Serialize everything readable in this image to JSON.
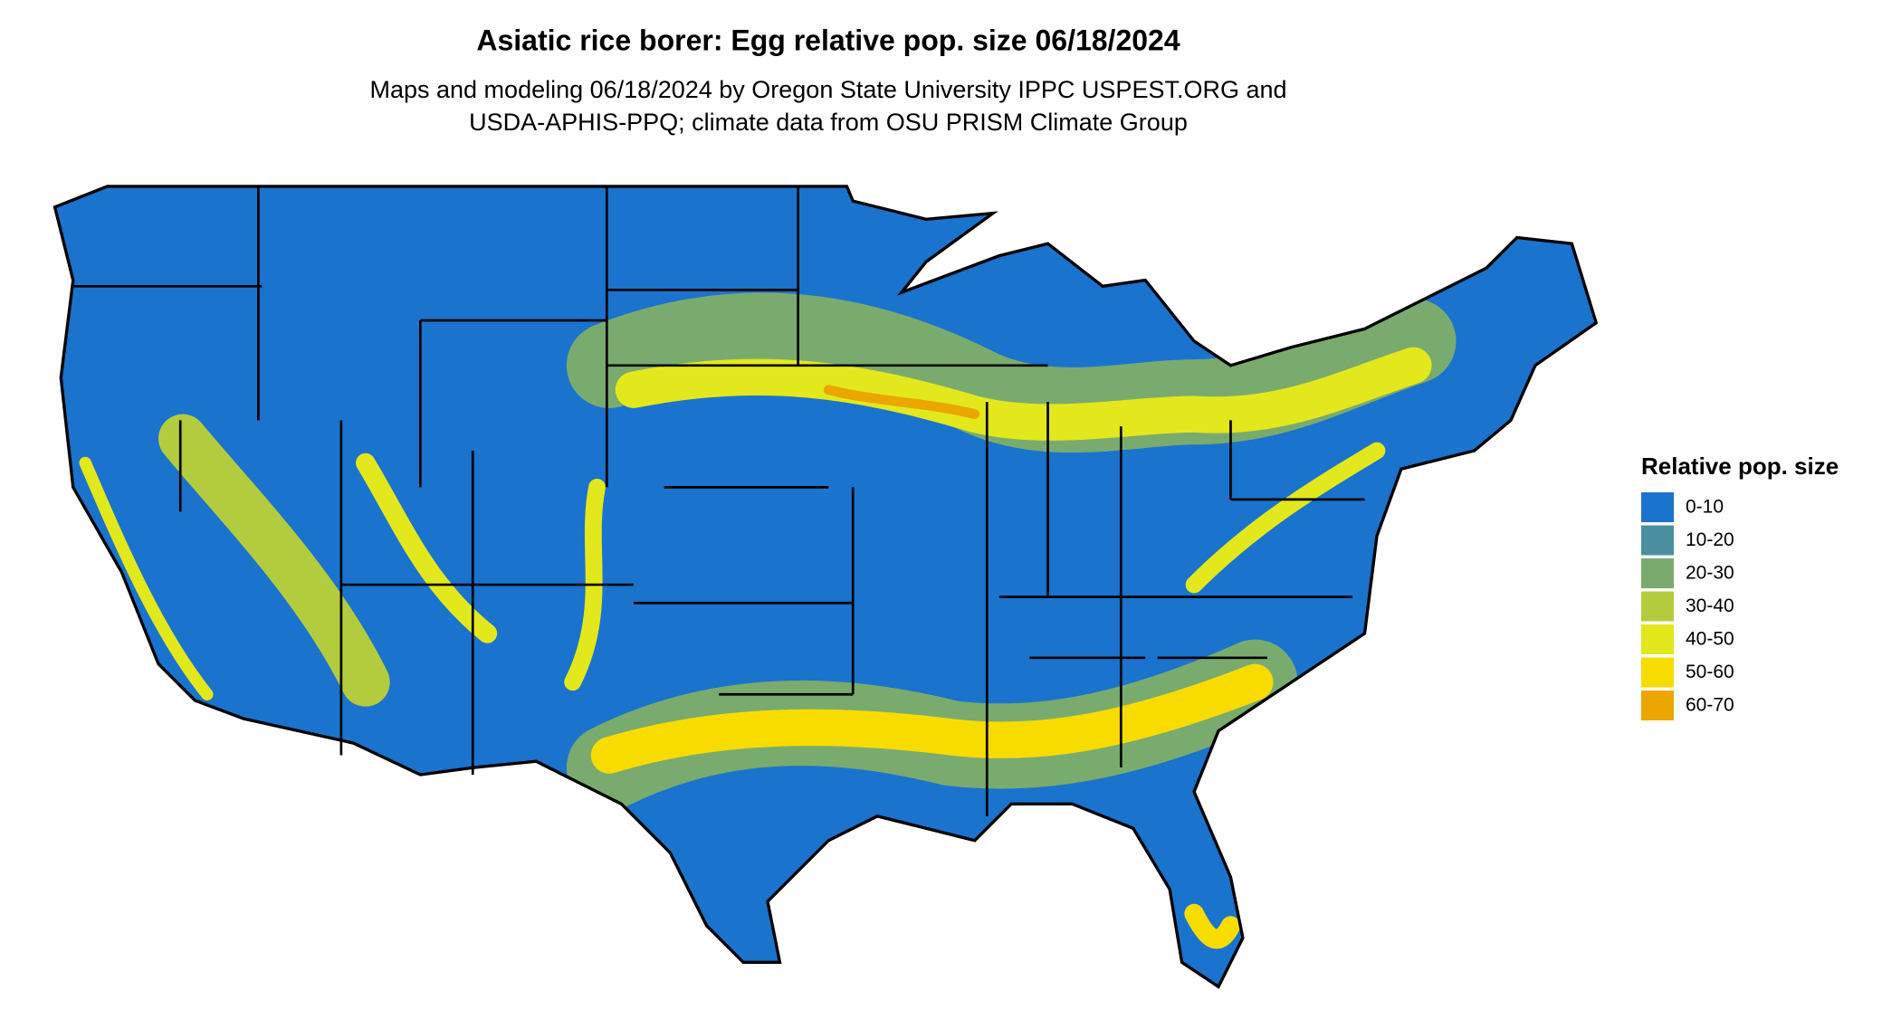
{
  "title": "Asiatic rice borer: Egg relative pop. size 06/18/2024",
  "subtitle": [
    "Maps and modeling 06/18/2024 by Oregon State University IPPC USPEST.ORG and",
    "USDA-APHIS-PPQ; climate data from OSU PRISM Climate Group"
  ],
  "legend": {
    "title": "Relative pop. size",
    "items": [
      {
        "label": "0-10",
        "color": "#1a73cc"
      },
      {
        "label": "10-20",
        "color": "#4a8fa0"
      },
      {
        "label": "20-30",
        "color": "#7aab6e"
      },
      {
        "label": "30-40",
        "color": "#b3cc3d"
      },
      {
        "label": "40-50",
        "color": "#e2e81c"
      },
      {
        "label": "50-60",
        "color": "#f8dc00"
      },
      {
        "label": "60-70",
        "color": "#eba600"
      }
    ]
  }
}
